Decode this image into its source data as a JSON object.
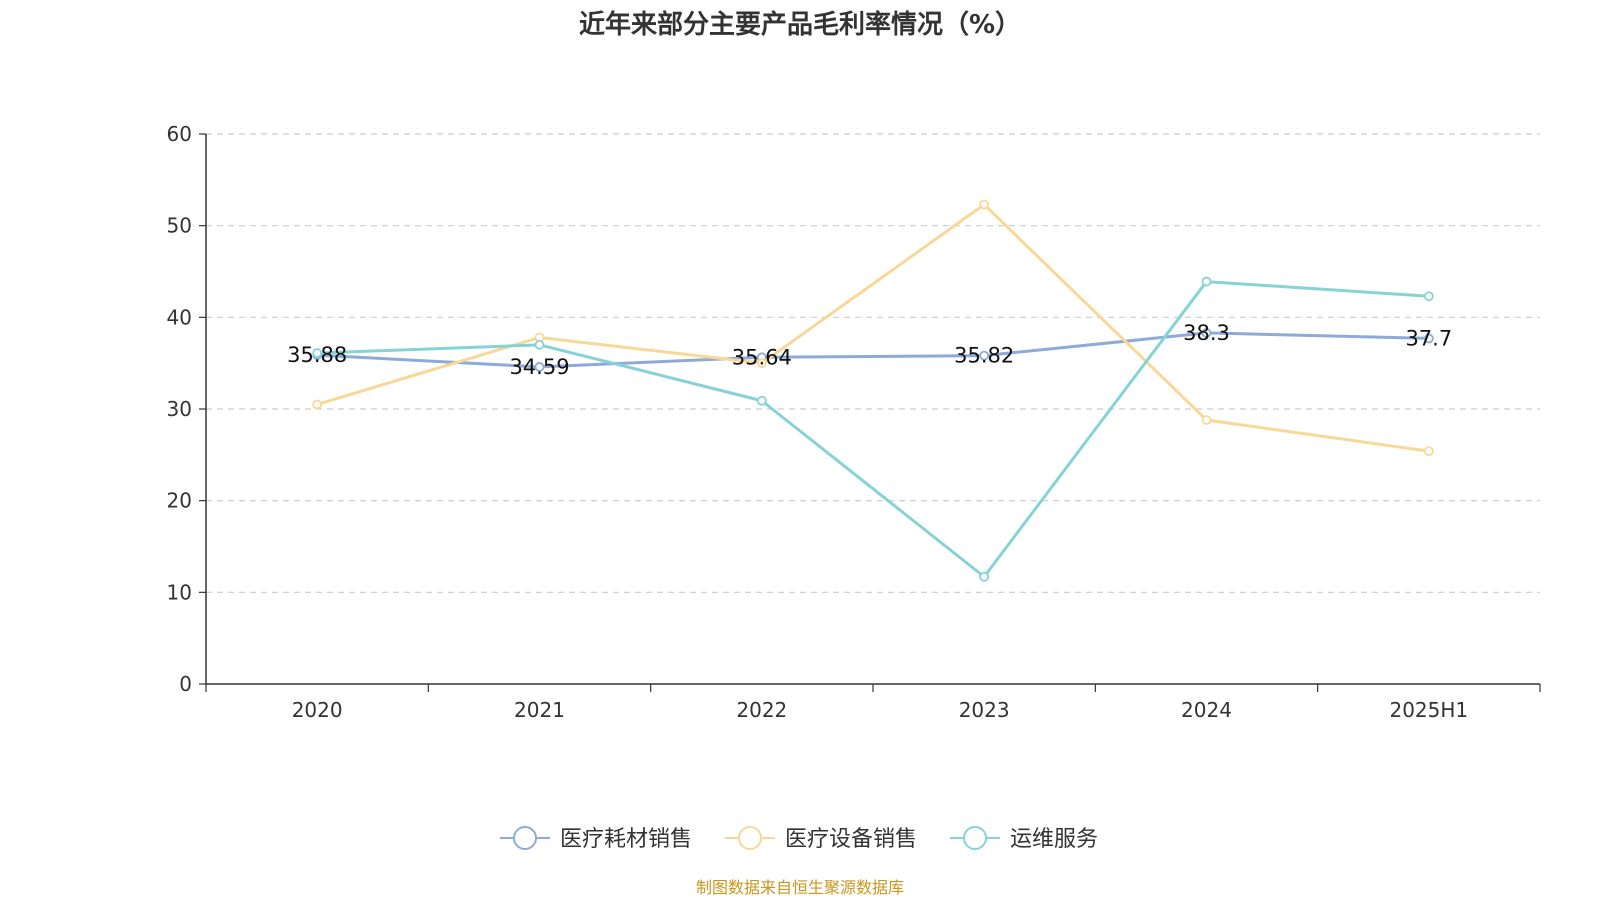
{
  "chart_data": {
    "type": "line",
    "title": "近年来部分主要产品毛利率情况（%）",
    "categories": [
      "2020",
      "2021",
      "2022",
      "2023",
      "2024",
      "2025H1"
    ],
    "ylim": [
      0,
      60
    ],
    "yticks": [
      "0",
      "10",
      "20",
      "30",
      "40",
      "50",
      "60"
    ],
    "grid": true,
    "legend_position": "bottom",
    "series": [
      {
        "name": "医疗耗材销售",
        "color": "#8eaad8",
        "values": [
          35.88,
          34.59,
          35.64,
          35.82,
          38.3,
          37.7
        ],
        "labels": [
          "35.88",
          "34.59",
          "35.64",
          "35.82",
          "38.3",
          "37.7"
        ]
      },
      {
        "name": "医疗设备销售",
        "color": "#f8d896",
        "values": [
          30.5,
          37.8,
          35.0,
          52.3,
          28.8,
          25.4
        ]
      },
      {
        "name": "运维服务",
        "color": "#86d3d6",
        "values": [
          36.1,
          37.0,
          30.9,
          11.7,
          43.9,
          42.3
        ]
      }
    ]
  },
  "source": "制图数据来自恒生聚源数据库"
}
